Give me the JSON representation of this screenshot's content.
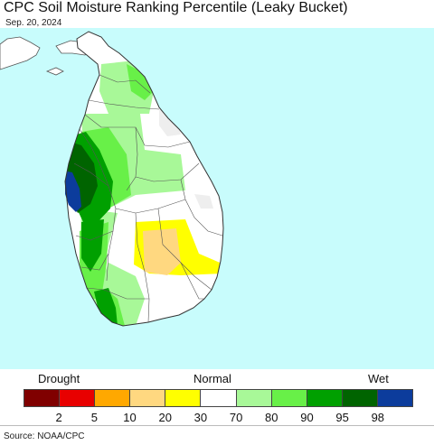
{
  "header": {
    "title": "CPC Soil Moisture Ranking Percentile (Leaky Bucket)",
    "date": "Sep. 20, 2024"
  },
  "map": {
    "ocean_color": "#c8fcfc",
    "land_color": "#ffffff",
    "border_color": "#555555",
    "region": "Sri Lanka"
  },
  "legend": {
    "left_label": "Drought",
    "center_label": "Normal",
    "right_label": "Wet",
    "colors": [
      "#800000",
      "#e80000",
      "#ffa800",
      "#ffd880",
      "#ffff00",
      "#ffffff",
      "#a8f898",
      "#68f048",
      "#00a000",
      "#006400",
      "#0c3c9c"
    ],
    "ticks": [
      "2",
      "5",
      "10",
      "20",
      "30",
      "70",
      "80",
      "90",
      "95",
      "98"
    ]
  },
  "footer": {
    "source": "Source: NOAA/CPC"
  }
}
